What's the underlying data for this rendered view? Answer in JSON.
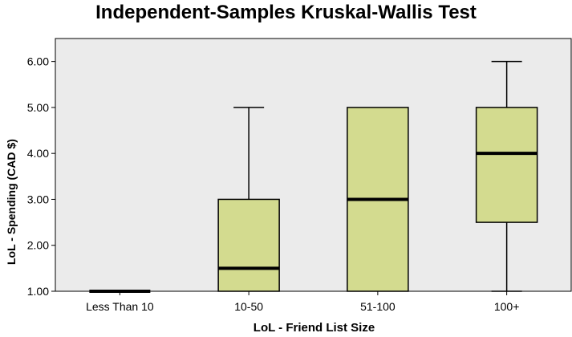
{
  "chart_data": {
    "type": "boxplot",
    "title": "Independent-Samples Kruskal-Wallis Test",
    "xlabel": "LoL - Friend List Size",
    "ylabel": "LoL - Spending (CAD $)",
    "ylim": [
      1.0,
      6.5
    ],
    "yticks": [
      "1.00",
      "2.00",
      "3.00",
      "4.00",
      "5.00",
      "6.00"
    ],
    "categories": [
      "Less Than 10",
      "10-50",
      "51-100",
      "100+"
    ],
    "boxes": [
      {
        "category": "Less Than 10",
        "whisker_low": 1.0,
        "q1": 1.0,
        "median": 1.0,
        "q3": 1.0,
        "whisker_high": 1.0
      },
      {
        "category": "10-50",
        "whisker_low": 1.0,
        "q1": 1.0,
        "median": 1.5,
        "q3": 3.0,
        "whisker_high": 5.0
      },
      {
        "category": "51-100",
        "whisker_low": 1.0,
        "q1": 1.0,
        "median": 3.0,
        "q3": 5.0,
        "whisker_high": 5.0
      },
      {
        "category": "100+",
        "whisker_low": 1.0,
        "q1": 2.5,
        "median": 4.0,
        "q3": 5.0,
        "whisker_high": 6.0
      }
    ],
    "colors": {
      "box_fill": "#d3db8f",
      "plot_background": "#ebebeb",
      "line": "#000000"
    },
    "grid": false
  }
}
